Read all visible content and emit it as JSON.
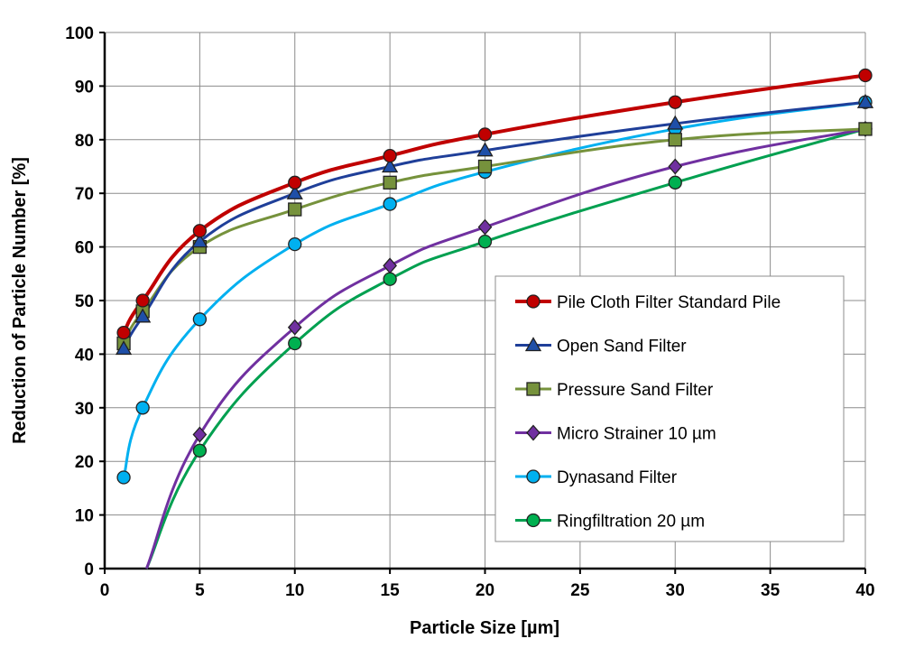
{
  "chart_data": {
    "type": "line",
    "xlabel": "Particle Size  [µm]",
    "ylabel": "Reduction of Particle Number [%]",
    "xlim": [
      0,
      40
    ],
    "ylim": [
      0,
      100
    ],
    "xticks": [
      0,
      5,
      10,
      15,
      20,
      25,
      30,
      35,
      40
    ],
    "yticks": [
      0,
      10,
      20,
      30,
      40,
      50,
      60,
      70,
      80,
      90,
      100
    ],
    "grid": true,
    "legend_position": "center-right",
    "series": [
      {
        "name": "Pile Cloth Filter Standard Pile",
        "color": "#c00000",
        "marker": "circle",
        "marker_fill": "#c00000",
        "x": [
          1,
          2,
          5,
          10,
          15,
          20,
          30,
          40
        ],
        "y": [
          44,
          50,
          63,
          72,
          77,
          81,
          87,
          92
        ]
      },
      {
        "name": "Open Sand Filter",
        "color": "#1f3f99",
        "marker": "triangle",
        "marker_fill": "#1f4fa8",
        "x": [
          1,
          2,
          5,
          10,
          15,
          20,
          30,
          40
        ],
        "y": [
          41,
          47,
          61,
          70,
          75,
          78,
          83,
          87
        ]
      },
      {
        "name": "Pressure Sand Filter",
        "color": "#76923c",
        "marker": "square",
        "marker_fill": "#76923c",
        "x": [
          1,
          2,
          5,
          10,
          15,
          20,
          30,
          40
        ],
        "y": [
          42,
          48,
          60,
          67,
          72,
          75,
          80,
          82
        ]
      },
      {
        "name": "Micro Strainer 10 µm",
        "color": "#7030a0",
        "marker": "diamond",
        "marker_fill": "#7030a0",
        "x": [
          2.2,
          5,
          10,
          15,
          20,
          30,
          40
        ],
        "y": [
          0,
          25,
          45,
          56.5,
          63.7,
          75,
          82
        ],
        "marker_points": [
          5,
          10,
          15,
          20,
          30,
          40
        ]
      },
      {
        "name": "Dynasand Filter",
        "color": "#00b0f0",
        "marker": "circle",
        "marker_fill": "#00b0f0",
        "x": [
          1,
          2,
          5,
          10,
          15,
          20,
          30,
          40
        ],
        "y": [
          17,
          30,
          46.5,
          60.5,
          68,
          74,
          82,
          87
        ]
      },
      {
        "name": "Ringfiltration 20 µm",
        "color": "#00a050",
        "marker": "circle",
        "marker_fill": "#00b050",
        "x": [
          2.2,
          5,
          10,
          15,
          20,
          30,
          40
        ],
        "y": [
          0,
          22,
          42,
          54,
          61,
          72,
          82
        ],
        "marker_points": [
          5,
          10,
          15,
          20,
          30,
          40
        ]
      }
    ]
  }
}
